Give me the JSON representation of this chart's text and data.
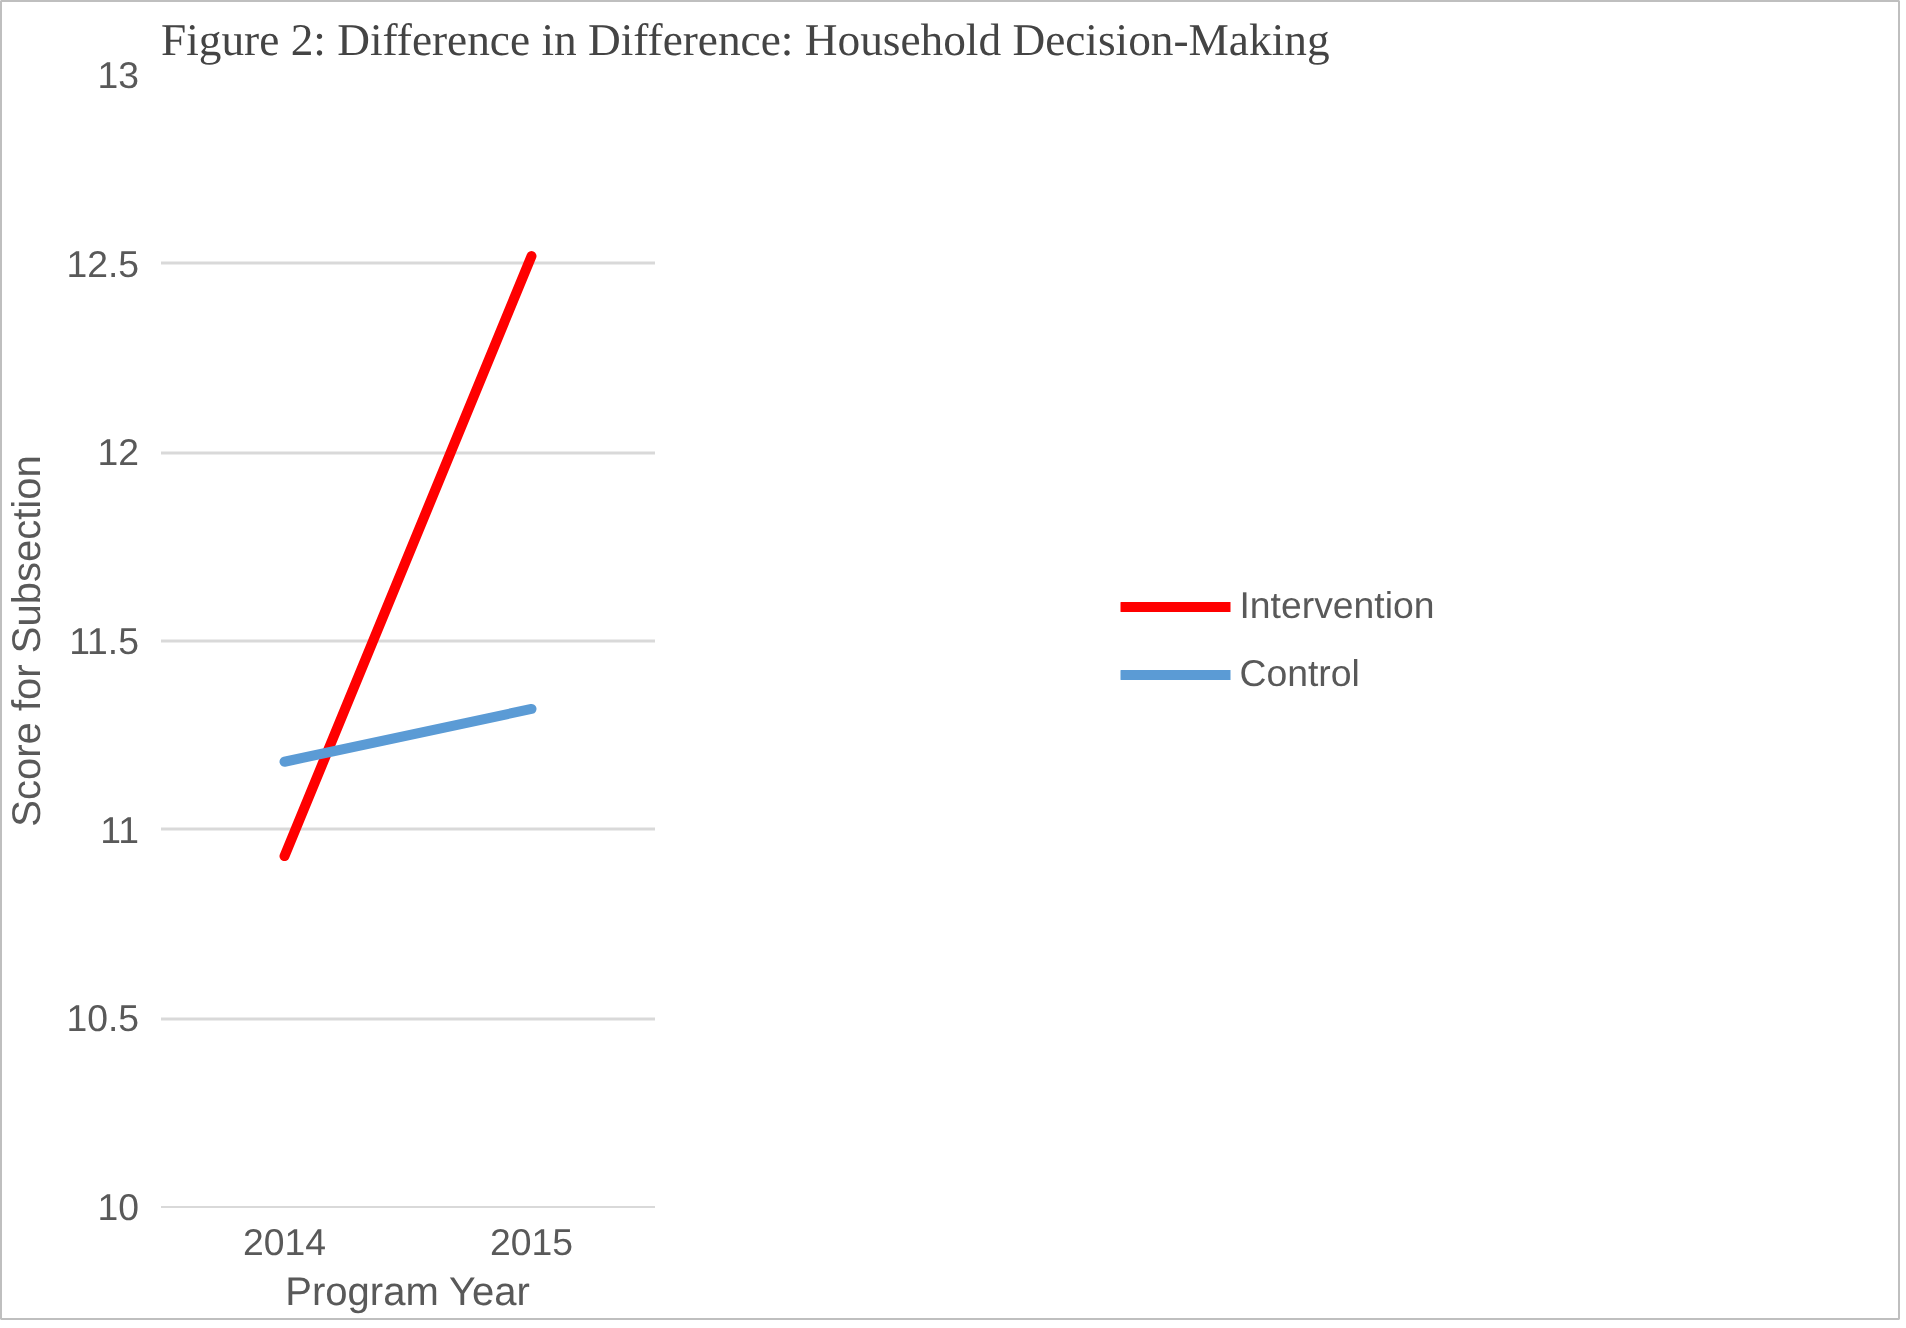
{
  "chart_data": {
    "type": "line",
    "title": "Figure 2: Difference in Difference: Household Decision-Making",
    "xlabel": "Program Year",
    "ylabel": "Score for Subsection",
    "categories": [
      "2014",
      "2015"
    ],
    "series": [
      {
        "name": "Intervention",
        "color": "#ff0000",
        "values": [
          10.93,
          12.52
        ]
      },
      {
        "name": "Control",
        "color": "#5b9bd5",
        "values": [
          11.18,
          11.32
        ]
      }
    ],
    "ylim": [
      10,
      13
    ],
    "yticks": [
      10,
      10.5,
      11,
      11.5,
      12,
      12.5,
      13
    ],
    "grid": "y",
    "legend": "right",
    "marker": "none",
    "line_style": "solid"
  }
}
